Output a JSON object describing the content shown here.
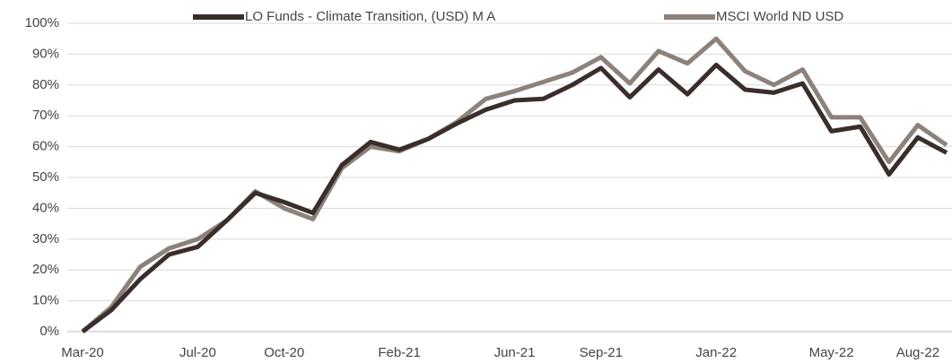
{
  "chart_data": {
    "type": "line",
    "categories": [
      "Mar-20",
      null,
      null,
      null,
      "Jul-20",
      null,
      null,
      "Oct-20",
      null,
      null,
      null,
      "Feb-21",
      null,
      null,
      null,
      "Jun-21",
      null,
      null,
      "Sep-21",
      null,
      null,
      null,
      "Jan-22",
      null,
      null,
      null,
      "May-22",
      null,
      null,
      "Aug-22",
      null
    ],
    "series": [
      {
        "name": "LO Funds - Climate Transition, (USD) M A",
        "color": "#3a2e2b",
        "values": [
          0,
          7,
          17,
          25,
          27.5,
          36,
          45,
          42,
          38.5,
          54,
          61.5,
          59,
          62.5,
          67.5,
          72,
          75,
          75.5,
          80,
          85.5,
          76,
          85,
          77,
          86.5,
          78.5,
          77.5,
          80.5,
          65,
          66.5,
          51,
          63,
          58
        ]
      },
      {
        "name": "MSCI World ND USD",
        "color": "#8c827b",
        "values": [
          0,
          8,
          21,
          27,
          30,
          36,
          45.5,
          40,
          36.5,
          53,
          60,
          58.5,
          62.5,
          68,
          75.5,
          78,
          81,
          84,
          89,
          80.5,
          91,
          87,
          95,
          84.5,
          80,
          85,
          69.5,
          69.5,
          55,
          67,
          60.5
        ]
      }
    ],
    "ylim": [
      0,
      100
    ],
    "yticks": [
      {
        "value": 0,
        "label": "0%"
      },
      {
        "value": 10,
        "label": "10%"
      },
      {
        "value": 20,
        "label": "20%"
      },
      {
        "value": 30,
        "label": "30%"
      },
      {
        "value": 40,
        "label": "40%"
      },
      {
        "value": 50,
        "label": "50%"
      },
      {
        "value": 60,
        "label": "60%"
      },
      {
        "value": 70,
        "label": "70%"
      },
      {
        "value": 80,
        "label": "80%"
      },
      {
        "value": 90,
        "label": "90%"
      },
      {
        "value": 100,
        "label": "100%"
      }
    ],
    "grid": true,
    "legend": "top"
  }
}
